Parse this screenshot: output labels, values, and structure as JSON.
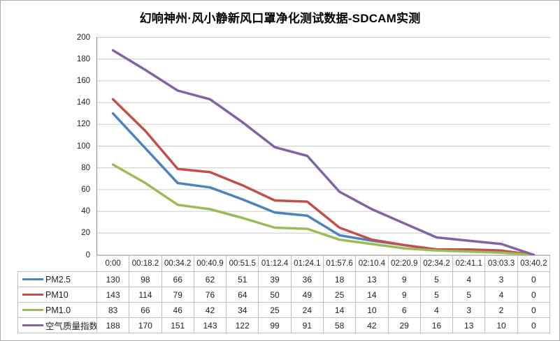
{
  "chart_data": {
    "type": "line",
    "title": "幻响神州·风小静新风口罩净化测试数据-SDCAM实测",
    "categories": [
      "0:00",
      "00:18.2",
      "00:34.2",
      "00:40.9",
      "00:51.5",
      "01:12.4",
      "01:24.1",
      "01:57.6",
      "02:10.4",
      "02:20.9",
      "02:34.2",
      "02:41.1",
      "03:03.3",
      "03:40.2"
    ],
    "series": [
      {
        "name": "PM2.5",
        "color": "#4F81BD",
        "values": [
          130,
          98,
          66,
          62,
          51,
          39,
          36,
          18,
          13,
          9,
          5,
          4,
          3,
          0
        ]
      },
      {
        "name": "PM10",
        "color": "#C0504D",
        "values": [
          143,
          114,
          79,
          76,
          64,
          50,
          49,
          25,
          14,
          9,
          5,
          5,
          4,
          0
        ]
      },
      {
        "name": "PM1.0",
        "color": "#9BBB59",
        "values": [
          83,
          66,
          46,
          42,
          34,
          25,
          24,
          14,
          10,
          6,
          4,
          3,
          2,
          0
        ]
      },
      {
        "name": "空气质量指数",
        "color": "#8064A2",
        "values": [
          188,
          170,
          151,
          143,
          122,
          99,
          91,
          58,
          42,
          29,
          16,
          13,
          10,
          0
        ]
      }
    ],
    "xlabel": "",
    "ylabel": "",
    "ylim": [
      0,
      200
    ],
    "ytick_step": 20,
    "yticks": [
      0,
      20,
      40,
      60,
      80,
      100,
      120,
      140,
      160,
      180,
      200
    ],
    "grid": true,
    "markers": false,
    "legend_position": "data-table-left"
  },
  "style": {
    "grid_color": "#C9C9C9",
    "axis_color": "#8C8C8C",
    "table_border_color": "#BFBFBF",
    "background": "#FFFFFF",
    "line_width": 3.5
  }
}
